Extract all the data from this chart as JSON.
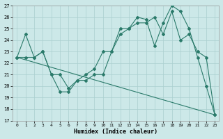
{
  "xlabel": "Humidex (Indice chaleur)",
  "bg_color": "#cce8e8",
  "grid_color": "#aacfcf",
  "line_color": "#2a7a6a",
  "xlim_min": -0.5,
  "xlim_max": 23.5,
  "ylim_min": 17,
  "ylim_max": 27,
  "xticks": [
    0,
    1,
    2,
    3,
    4,
    5,
    6,
    7,
    8,
    9,
    10,
    11,
    12,
    13,
    14,
    15,
    16,
    17,
    18,
    19,
    20,
    21,
    22,
    23
  ],
  "yticks": [
    17,
    18,
    19,
    20,
    21,
    22,
    23,
    24,
    25,
    26,
    27
  ],
  "line1_x": [
    0,
    1,
    2,
    3,
    4,
    5,
    6,
    7,
    8,
    9,
    10,
    11,
    12,
    13,
    14,
    15,
    16,
    17,
    18,
    19,
    20,
    21,
    22,
    23
  ],
  "line1_y": [
    22.5,
    24.5,
    22.5,
    23.0,
    21.0,
    19.5,
    19.5,
    20.5,
    21.0,
    21.5,
    23.0,
    23.0,
    25.0,
    25.0,
    26.0,
    25.8,
    23.5,
    25.5,
    27.0,
    26.5,
    25.0,
    22.5,
    20.0,
    17.5
  ],
  "line2_x": [
    0,
    1,
    2,
    3,
    4,
    5,
    6,
    7,
    8,
    9,
    10,
    11,
    12,
    13,
    14,
    15,
    16,
    17,
    18,
    19,
    20,
    21,
    22,
    23
  ],
  "line2_y": [
    22.5,
    22.5,
    22.5,
    23.0,
    21.0,
    21.0,
    19.8,
    20.5,
    20.5,
    21.0,
    21.0,
    23.0,
    24.5,
    25.0,
    25.5,
    25.5,
    26.0,
    24.5,
    26.5,
    24.0,
    24.5,
    23.0,
    22.5,
    17.5
  ],
  "line3_x": [
    0,
    23
  ],
  "line3_y": [
    22.5,
    17.5
  ]
}
